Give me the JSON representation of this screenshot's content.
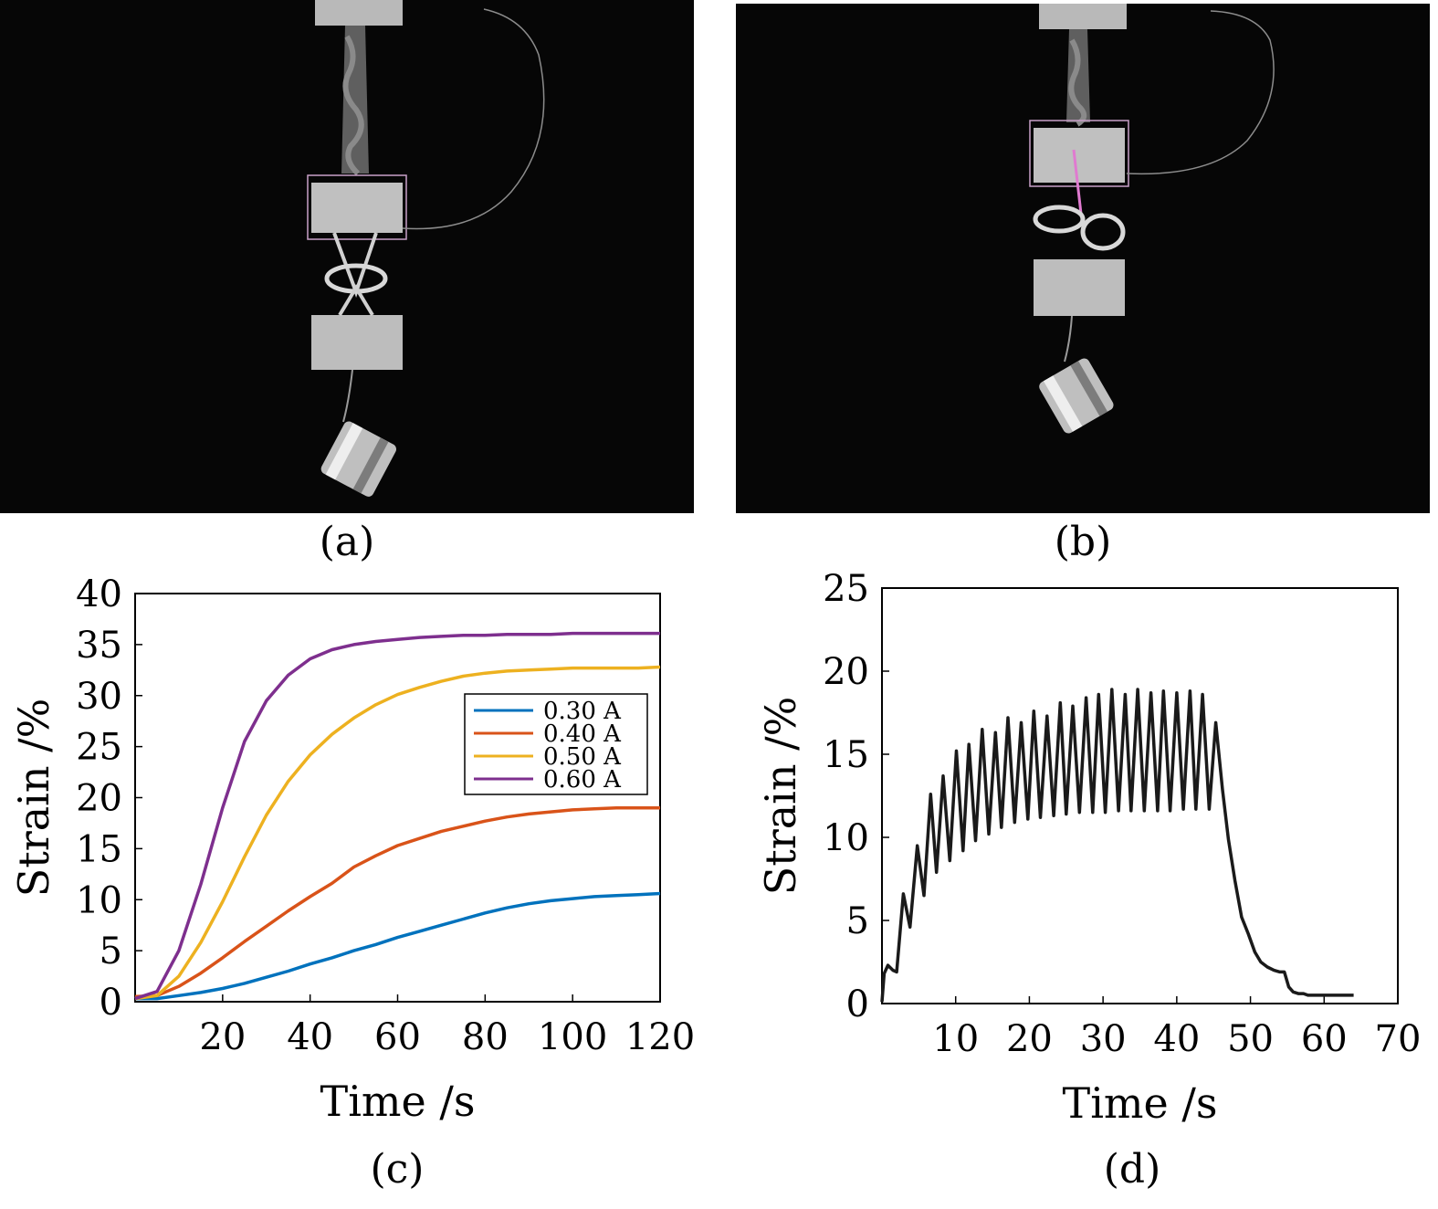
{
  "panels": {
    "a": {
      "label": "(a)"
    },
    "b": {
      "label": "(b)"
    },
    "c": {
      "label": "(c)"
    },
    "d": {
      "label": "(d)"
    }
  },
  "chart_data": [
    {
      "panel": "c",
      "type": "line",
      "xlabel": "Time /s",
      "ylabel": "Strain /%",
      "xlim": [
        0,
        120
      ],
      "ylim": [
        0,
        40
      ],
      "xticks": [
        20,
        40,
        60,
        80,
        100,
        120
      ],
      "yticks": [
        0,
        5,
        10,
        15,
        20,
        25,
        30,
        35,
        40
      ],
      "legend_position": "right-middle",
      "x": [
        0,
        5,
        10,
        15,
        20,
        25,
        30,
        35,
        40,
        45,
        50,
        55,
        60,
        65,
        70,
        75,
        80,
        85,
        90,
        95,
        100,
        105,
        110,
        115,
        120
      ],
      "series": [
        {
          "name": "0.30 A",
          "color": "#0072BD",
          "values": [
            0.3,
            0.3,
            0.6,
            0.9,
            1.3,
            1.8,
            2.4,
            3.0,
            3.7,
            4.3,
            5.0,
            5.6,
            6.3,
            6.9,
            7.5,
            8.1,
            8.7,
            9.2,
            9.6,
            9.9,
            10.1,
            10.3,
            10.4,
            10.5,
            10.6
          ]
        },
        {
          "name": "0.40 A",
          "color": "#D95319",
          "values": [
            0.5,
            0.6,
            1.5,
            2.8,
            4.3,
            5.9,
            7.4,
            8.9,
            10.3,
            11.6,
            13.2,
            14.3,
            15.3,
            16.0,
            16.7,
            17.2,
            17.7,
            18.1,
            18.4,
            18.6,
            18.8,
            18.9,
            19.0,
            19.0,
            19.0
          ]
        },
        {
          "name": "0.50 A",
          "color": "#EDB120",
          "values": [
            0.3,
            0.6,
            2.5,
            5.8,
            9.8,
            14.2,
            18.3,
            21.6,
            24.2,
            26.2,
            27.8,
            29.1,
            30.1,
            30.8,
            31.4,
            31.9,
            32.2,
            32.4,
            32.5,
            32.6,
            32.7,
            32.7,
            32.7,
            32.7,
            32.8
          ]
        },
        {
          "name": "0.60 A",
          "color": "#7E2F8E",
          "values": [
            0.3,
            1.0,
            5.0,
            11.5,
            19.0,
            25.5,
            29.5,
            32.0,
            33.6,
            34.5,
            35.0,
            35.3,
            35.5,
            35.7,
            35.8,
            35.9,
            35.9,
            36.0,
            36.0,
            36.0,
            36.1,
            36.1,
            36.1,
            36.1,
            36.1
          ]
        }
      ]
    },
    {
      "panel": "d",
      "type": "line",
      "xlabel": "Time /s",
      "ylabel": "Strain /%",
      "xlim": [
        0,
        70
      ],
      "ylim": [
        0,
        25
      ],
      "xticks": [
        10,
        20,
        30,
        40,
        50,
        60,
        70
      ],
      "yticks": [
        0,
        5,
        10,
        15,
        20,
        25
      ],
      "series": [
        {
          "color": "#1a1a1a",
          "x": [
            0.0,
            0.3,
            0.8,
            1.5,
            2.0,
            2.9,
            3.8,
            4.8,
            5.7,
            6.6,
            7.4,
            8.3,
            9.2,
            10.1,
            11.0,
            11.8,
            12.7,
            13.6,
            14.5,
            15.4,
            16.2,
            17.1,
            18.0,
            18.9,
            19.8,
            20.6,
            21.5,
            22.4,
            23.3,
            24.2,
            25.0,
            25.9,
            26.8,
            27.7,
            28.6,
            29.4,
            30.3,
            31.2,
            32.1,
            33.0,
            33.8,
            34.7,
            35.6,
            36.5,
            37.4,
            38.2,
            39.1,
            40.0,
            40.9,
            41.8,
            42.6,
            43.5,
            44.4,
            45.3,
            46.2,
            47.0,
            47.9,
            48.8,
            49.7,
            50.6,
            51.4,
            52.3,
            53.2,
            54.0,
            54.6,
            55.2,
            55.8,
            56.5,
            57.2,
            57.8,
            58.5,
            59.2,
            60.0,
            61.0,
            62.2,
            62.8,
            63.3,
            64.0
          ],
          "y": [
            0.1,
            1.8,
            2.3,
            2.0,
            1.9,
            6.6,
            4.6,
            9.5,
            6.5,
            12.6,
            7.9,
            13.7,
            8.6,
            15.2,
            9.2,
            15.6,
            9.8,
            16.5,
            10.2,
            16.3,
            10.6,
            17.2,
            10.9,
            16.9,
            11.1,
            17.6,
            11.2,
            17.3,
            11.3,
            18.1,
            11.4,
            17.9,
            11.5,
            18.4,
            11.5,
            18.6,
            11.5,
            18.9,
            11.6,
            18.6,
            11.6,
            18.9,
            11.6,
            18.7,
            11.6,
            18.8,
            11.6,
            18.7,
            11.7,
            18.8,
            11.7,
            18.6,
            11.7,
            16.9,
            12.9,
            9.9,
            7.4,
            5.2,
            4.2,
            3.1,
            2.5,
            2.2,
            2.0,
            1.9,
            1.9,
            1.0,
            0.7,
            0.6,
            0.6,
            0.5,
            0.5,
            0.5,
            0.5,
            0.5,
            0.5,
            0.5,
            0.5,
            0.5
          ]
        }
      ]
    }
  ]
}
